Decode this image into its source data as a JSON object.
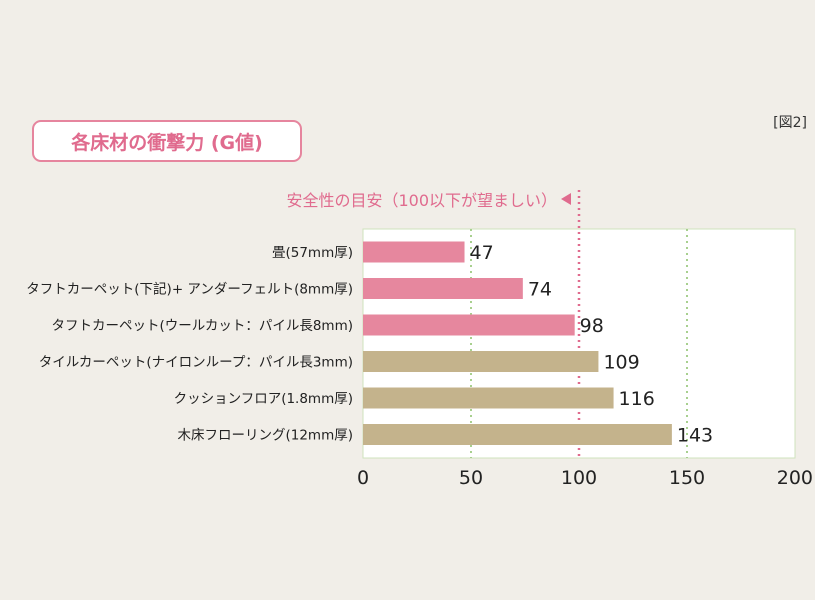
{
  "figure_label": "[図2]",
  "chart_data": {
    "type": "bar",
    "orientation": "horizontal",
    "title": "各床材の衝撃力 (G値)",
    "categories": [
      "畳(57mm厚)",
      "タフトカーペット(下記)+ アンダーフェルト(8mm厚)",
      "タフトカーペット(ウールカット：パイル長8mm)",
      "タイルカーペット(ナイロンループ：パイル長3mm)",
      "クッションフロア(1.8mm厚)",
      "木床フローリング(12mm厚)"
    ],
    "values": [
      47,
      74,
      98,
      109,
      116,
      143
    ],
    "value_labels": [
      "47",
      "74",
      "98",
      "109",
      "116",
      "143"
    ],
    "xlim": [
      0,
      200
    ],
    "x_ticks": [
      "0",
      "50",
      "100",
      "150",
      "200"
    ],
    "reference_line": {
      "value": 100,
      "label": "安全性の目安（100以下が望ましい）"
    },
    "colors": {
      "below_reference": "#e6879e",
      "above_reference": "#c4b38c",
      "reference_line": "#e06b8e",
      "grid": "#a8d08f",
      "title": "#e06b8e"
    },
    "grid": true
  }
}
